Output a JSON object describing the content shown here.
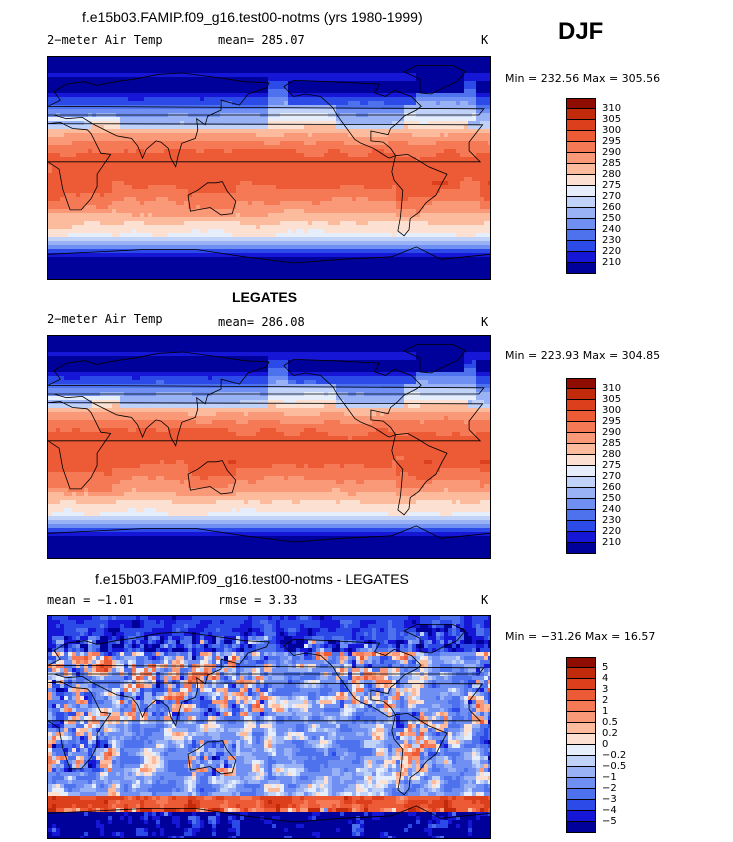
{
  "season": "DJF",
  "panels": [
    {
      "title": "f.e15b03.FAMIP.f09_g16.test00-notms (yrs 1980-1999)",
      "left_label": "2−meter Air Temp",
      "center_label": "mean= 285.07",
      "units": "K",
      "minmax": "Min = 232.56 Max = 305.56",
      "kind": "abs",
      "colorbar_colors": [
        "#00009a",
        "#1616d6",
        "#2c4ae8",
        "#4e72ee",
        "#6f90f2",
        "#99b2f5",
        "#c1d2f8",
        "#e6eefb",
        "#fce1d2",
        "#fbbb9c",
        "#f99977",
        "#f57955",
        "#ec5a36",
        "#dc3f1c",
        "#c12a0a",
        "#8e0d00"
      ],
      "colorbar_labels": [
        "310",
        "305",
        "300",
        "295",
        "290",
        "285",
        "280",
        "275",
        "270",
        "260",
        "250",
        "240",
        "230",
        "220",
        "210"
      ]
    },
    {
      "title": "LEGATES",
      "left_label": "2−meter Air Temp",
      "center_label": "mean= 286.08",
      "units": "K",
      "minmax": "Min = 223.93 Max = 304.85",
      "kind": "abs",
      "colorbar_colors": [
        "#00009a",
        "#1616d6",
        "#2c4ae8",
        "#4e72ee",
        "#6f90f2",
        "#99b2f5",
        "#c1d2f8",
        "#e6eefb",
        "#fce1d2",
        "#fbbb9c",
        "#f99977",
        "#f57955",
        "#ec5a36",
        "#dc3f1c",
        "#c12a0a",
        "#8e0d00"
      ],
      "colorbar_labels": [
        "310",
        "305",
        "300",
        "295",
        "290",
        "285",
        "280",
        "275",
        "270",
        "260",
        "250",
        "240",
        "230",
        "220",
        "210"
      ]
    },
    {
      "title": "f.e15b03.FAMIP.f09_g16.test00-notms - LEGATES",
      "left_label": "mean =   −1.01",
      "center_label": "rmse =    3.33",
      "units": "K",
      "minmax": "Min = −31.26 Max =  16.57",
      "kind": "diff",
      "colorbar_colors": [
        "#00009a",
        "#1616d6",
        "#2c4ae8",
        "#4e72ee",
        "#6f90f2",
        "#99b2f5",
        "#c1d2f8",
        "#e6eefb",
        "#fce1d2",
        "#fbbb9c",
        "#f99977",
        "#f57955",
        "#ec5a36",
        "#dc3f1c",
        "#c12a0a",
        "#8e0d00"
      ],
      "colorbar_labels": [
        "5",
        "4",
        "3",
        "2",
        "1",
        "0.5",
        "0.2",
        "0",
        "−0.2",
        "−0.5",
        "−1",
        "−2",
        "−3",
        "−4",
        "−5"
      ]
    }
  ]
}
